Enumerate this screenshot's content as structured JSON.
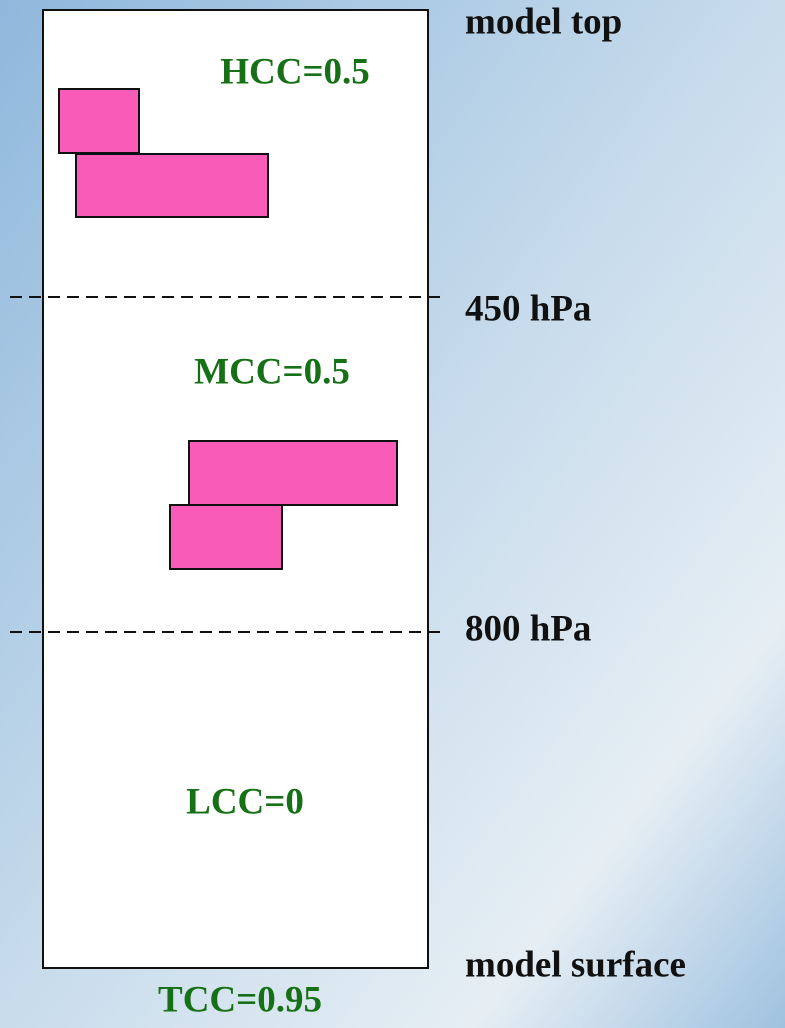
{
  "level_labels": {
    "top": "model top",
    "upper": "450 hPa",
    "lower": "800 hPa",
    "surface": "model surface"
  },
  "cloud_cover": {
    "high": "HCC=0.5",
    "middle": "MCC=0.5",
    "low": "LCC=0",
    "total": "TCC=0.95"
  }
}
